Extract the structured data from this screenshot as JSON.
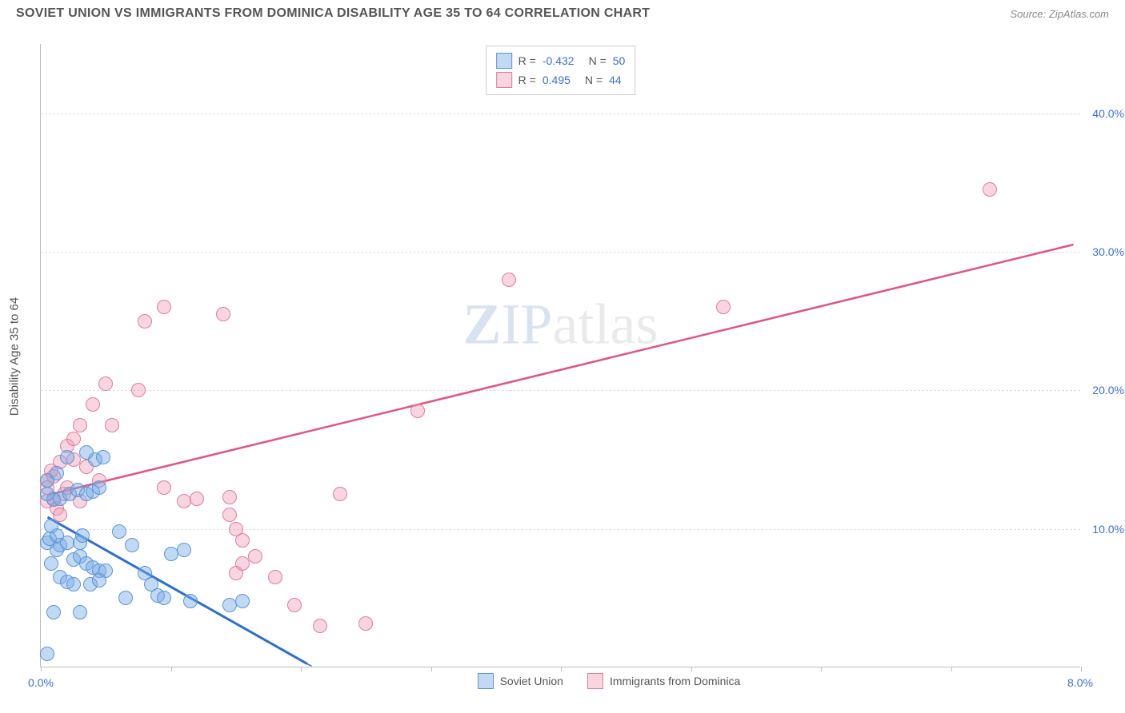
{
  "header": {
    "title": "SOVIET UNION VS IMMIGRANTS FROM DOMINICA DISABILITY AGE 35 TO 64 CORRELATION CHART",
    "source": "Source: ZipAtlas.com"
  },
  "ylabel": "Disability Age 35 to 64",
  "watermark": {
    "zip": "ZIP",
    "atlas": "atlas"
  },
  "chart": {
    "type": "scatter",
    "xlim": [
      0,
      8
    ],
    "ylim": [
      0,
      45
    ],
    "ytick_labels": [
      "10.0%",
      "20.0%",
      "30.0%",
      "40.0%"
    ],
    "ytick_values": [
      10,
      20,
      30,
      40
    ],
    "xtick_start": "0.0%",
    "xtick_end": "8.0%",
    "xtick_positions": [
      0,
      1.0,
      2.0,
      3.0,
      4.0,
      5.0,
      6.0,
      7.0,
      8.0
    ],
    "background_color": "#ffffff",
    "grid_color": "#dddddd"
  },
  "series": {
    "blue": {
      "name": "Soviet Union",
      "fill": "rgba(120,170,230,0.45)",
      "stroke": "#5a95d8",
      "line_color": "#2e6fd0",
      "R": "-0.432",
      "N": "50",
      "trend": {
        "x1": 0.05,
        "y1": 10.8,
        "x2": 2.05,
        "y2": 0.2,
        "dash_x2": 2.7,
        "dash_y2": -3
      },
      "points": [
        [
          0.05,
          1.0
        ],
        [
          0.1,
          4.0
        ],
        [
          0.12,
          8.5
        ],
        [
          0.15,
          8.8
        ],
        [
          0.05,
          9.0
        ],
        [
          0.07,
          9.3
        ],
        [
          0.12,
          9.5
        ],
        [
          0.2,
          9.0
        ],
        [
          0.3,
          9.0
        ],
        [
          0.32,
          9.5
        ],
        [
          0.08,
          10.2
        ],
        [
          0.1,
          12.1
        ],
        [
          0.15,
          12.2
        ],
        [
          0.22,
          12.5
        ],
        [
          0.28,
          12.8
        ],
        [
          0.35,
          12.5
        ],
        [
          0.4,
          12.7
        ],
        [
          0.45,
          13.0
        ],
        [
          0.05,
          13.5
        ],
        [
          0.12,
          14.0
        ],
        [
          0.25,
          7.8
        ],
        [
          0.3,
          8.0
        ],
        [
          0.35,
          7.5
        ],
        [
          0.4,
          7.2
        ],
        [
          0.45,
          7.0
        ],
        [
          0.5,
          7.0
        ],
        [
          0.38,
          6.0
        ],
        [
          0.15,
          6.5
        ],
        [
          0.2,
          6.2
        ],
        [
          0.25,
          6.0
        ],
        [
          0.6,
          9.8
        ],
        [
          0.7,
          8.8
        ],
        [
          0.8,
          6.8
        ],
        [
          0.85,
          6.0
        ],
        [
          0.9,
          5.2
        ],
        [
          0.95,
          5.0
        ],
        [
          1.0,
          8.2
        ],
        [
          1.1,
          8.5
        ],
        [
          1.15,
          4.8
        ],
        [
          0.3,
          4.0
        ],
        [
          0.42,
          15.0
        ],
        [
          0.48,
          15.2
        ],
        [
          0.2,
          15.2
        ],
        [
          0.35,
          15.5
        ],
        [
          0.05,
          12.5
        ],
        [
          0.08,
          7.5
        ],
        [
          0.45,
          6.3
        ],
        [
          1.45,
          4.5
        ],
        [
          1.55,
          4.8
        ],
        [
          0.65,
          5.0
        ]
      ]
    },
    "pink": {
      "name": "Immigrants from Dominica",
      "fill": "rgba(240,150,175,0.4)",
      "stroke": "#e17ba0",
      "line_color": "#e0557f",
      "R": " 0.495",
      "N": "44",
      "trend": {
        "x1": 0.05,
        "y1": 12.4,
        "x2": 7.95,
        "y2": 30.5
      },
      "points": [
        [
          0.05,
          12.0
        ],
        [
          0.05,
          13.5
        ],
        [
          0.05,
          13.0
        ],
        [
          0.08,
          14.2
        ],
        [
          0.1,
          13.8
        ],
        [
          0.1,
          12.2
        ],
        [
          0.12,
          11.5
        ],
        [
          0.15,
          14.8
        ],
        [
          0.15,
          11.0
        ],
        [
          0.18,
          12.5
        ],
        [
          0.2,
          13.0
        ],
        [
          0.2,
          16.0
        ],
        [
          0.25,
          16.5
        ],
        [
          0.3,
          17.5
        ],
        [
          0.25,
          15.0
        ],
        [
          0.35,
          14.5
        ],
        [
          0.4,
          19.0
        ],
        [
          0.55,
          17.5
        ],
        [
          0.5,
          20.5
        ],
        [
          0.8,
          25.0
        ],
        [
          0.75,
          20.0
        ],
        [
          0.95,
          26.0
        ],
        [
          1.4,
          25.5
        ],
        [
          0.95,
          13.0
        ],
        [
          1.1,
          12.0
        ],
        [
          1.2,
          12.2
        ],
        [
          1.45,
          12.3
        ],
        [
          1.45,
          11.0
        ],
        [
          1.5,
          10.0
        ],
        [
          1.55,
          9.2
        ],
        [
          1.5,
          6.8
        ],
        [
          1.55,
          7.5
        ],
        [
          1.65,
          8.0
        ],
        [
          1.8,
          6.5
        ],
        [
          1.95,
          4.5
        ],
        [
          2.15,
          3.0
        ],
        [
          2.3,
          12.5
        ],
        [
          2.5,
          3.2
        ],
        [
          2.9,
          18.5
        ],
        [
          3.6,
          28.0
        ],
        [
          5.25,
          26.0
        ],
        [
          7.3,
          34.5
        ],
        [
          0.45,
          13.5
        ],
        [
          0.3,
          12.0
        ]
      ]
    }
  },
  "legend_bottom": {
    "blue_label": "Soviet Union",
    "pink_label": "Immigrants from Dominica"
  }
}
